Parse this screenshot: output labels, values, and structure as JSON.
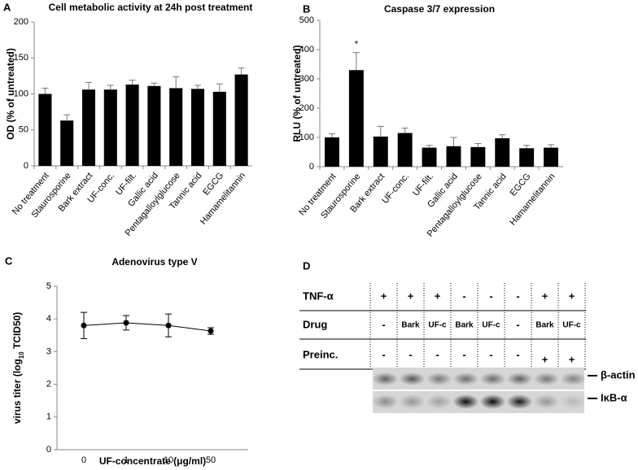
{
  "chart_data": [
    {
      "type": "bar",
      "panel_label": "A",
      "title": "Cell metabolic activity at 24h post treatment",
      "ylabel": "OD (% of untreated)",
      "categories": [
        "No treatment",
        "Staurosporine",
        "Bark extract",
        "UF-conc.",
        "UF-filt.",
        "Gallic acid",
        "Pentagalloylglucose",
        "Tannic acid",
        "EGCG",
        "Hamamelitannin"
      ],
      "values": [
        100,
        63,
        106,
        106,
        113,
        111,
        108,
        107,
        103,
        127
      ],
      "errors": [
        8,
        8,
        10,
        6,
        6,
        4,
        16,
        5,
        11,
        9
      ],
      "color": "#000000",
      "ylim": [
        0,
        200
      ],
      "yticks": [
        0,
        50,
        100,
        150,
        200
      ],
      "grid": false
    },
    {
      "type": "bar",
      "panel_label": "B",
      "title": "Caspase 3/7 expression",
      "ylabel": "RLU (% of untreated)",
      "annotation": "*",
      "categories": [
        "No treatment",
        "Staurosporine",
        "Bark extract",
        "UF-conc.",
        "UF-filt.",
        "Gallic acid",
        "Pentagalloylglucose",
        "Tannic acid",
        "EGCG",
        "Hamamelitannin"
      ],
      "values": [
        100,
        330,
        103,
        115,
        65,
        70,
        67,
        97,
        63,
        65
      ],
      "errors": [
        12,
        60,
        35,
        17,
        8,
        30,
        12,
        12,
        10,
        10
      ],
      "color": "#000000",
      "ylim": [
        0,
        500
      ],
      "yticks": [
        0,
        100,
        200,
        300,
        400,
        500
      ],
      "grid": false
    },
    {
      "type": "line",
      "panel_label": "C",
      "title": "Adenovirus  type V",
      "ylabel": [
        "virus titer (log",
        "10",
        " TCID50)"
      ],
      "xlabel": "UF-concentrate (μg/ml)",
      "categories": [
        "0",
        "1",
        "10",
        "50"
      ],
      "values": [
        3.8,
        3.88,
        3.8,
        3.63
      ],
      "errors": [
        0.4,
        0.22,
        0.35,
        0.1
      ],
      "color": "#000000",
      "ylim": [
        0,
        5
      ],
      "yticks": [
        0,
        1,
        2,
        3,
        4,
        5
      ],
      "grid": false
    }
  ],
  "blot": {
    "panel_label": "D",
    "row_labels": [
      "TNF-α",
      "Drug",
      "Preinc."
    ],
    "rows": [
      [
        "+",
        "+",
        "+",
        "-",
        "-",
        "-",
        "+",
        "+"
      ],
      [
        "-",
        "Bark",
        "UF-c",
        "Bark",
        "UF-c",
        "-",
        "Bark",
        "UF-c"
      ],
      [
        "-",
        "-",
        "-",
        "-",
        "-",
        "-",
        "+",
        "+"
      ]
    ],
    "band_labels": [
      "β-actin",
      "IκB-α"
    ]
  }
}
